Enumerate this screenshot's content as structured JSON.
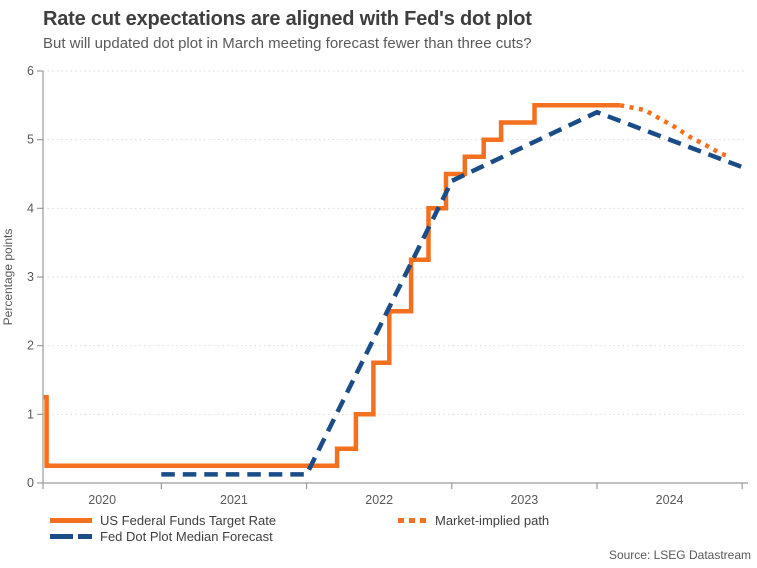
{
  "chart_data": {
    "type": "line",
    "title": "Rate cut expectations are aligned with Fed's dot plot",
    "subtitle": "But will updated dot plot in March meeting forecast fewer than three cuts?",
    "ylabel": "Percentage points",
    "xlabel": "",
    "ylim": [
      0,
      6
    ],
    "yticks": [
      0,
      1,
      2,
      3,
      4,
      5,
      6
    ],
    "xlim": [
      2020.185,
      2025.04
    ],
    "x_boundary_ticks": [
      2020.185,
      2021,
      2022,
      2023,
      2024,
      2025
    ],
    "x_year_labels": [
      "2020",
      "2021",
      "2022",
      "2023",
      "2024"
    ],
    "grid": "horizontal dotted gridlines at each integer, on",
    "legend_position": "bottom-left, two columns",
    "series": [
      {
        "name": "US Federal Funds Target Rate",
        "type": "step",
        "line_style": "solid",
        "color": "#F4701E",
        "points": [
          [
            2020.19,
            1.25
          ],
          [
            2020.21,
            0.25
          ],
          [
            2022.21,
            0.5
          ],
          [
            2022.34,
            1.0
          ],
          [
            2022.46,
            1.75
          ],
          [
            2022.57,
            2.5
          ],
          [
            2022.72,
            3.25
          ],
          [
            2022.84,
            4.0
          ],
          [
            2022.96,
            4.5
          ],
          [
            2023.09,
            4.75
          ],
          [
            2023.22,
            5.0
          ],
          [
            2023.34,
            5.25
          ],
          [
            2023.57,
            5.5
          ],
          [
            2024.16,
            5.5
          ]
        ]
      },
      {
        "name": "Fed Dot Plot Median Forecast",
        "type": "line",
        "line_style": "dashed",
        "color": "#1A4C87",
        "points": [
          [
            2021.0,
            0.125
          ],
          [
            2022.0,
            0.125
          ],
          [
            2023.0,
            4.4
          ],
          [
            2024.0,
            5.4
          ],
          [
            2025.0,
            4.6
          ]
        ]
      },
      {
        "name": "Market-implied path",
        "type": "line",
        "line_style": "dotted",
        "color": "#F4701E",
        "points": [
          [
            2024.16,
            5.5
          ],
          [
            2024.33,
            5.43
          ],
          [
            2024.43,
            5.31
          ],
          [
            2024.54,
            5.18
          ],
          [
            2024.64,
            5.04
          ],
          [
            2024.75,
            4.92
          ],
          [
            2024.85,
            4.8
          ],
          [
            2024.92,
            4.75
          ]
        ]
      }
    ]
  },
  "legend": {
    "items": [
      {
        "label": "US Federal Funds Target Rate",
        "style": "solid",
        "color": "#F4701E"
      },
      {
        "label": "Fed Dot Plot Median Forecast",
        "style": "dashed",
        "color": "#1A4C87"
      },
      {
        "label": "Market-implied path",
        "style": "dotted",
        "color": "#F4701E"
      }
    ]
  },
  "source": "Source: LSEG Datastream",
  "colors": {
    "orange": "#F4701E",
    "blue": "#1A4C87",
    "title_text": "#3E3E3E",
    "subtitle_text": "#5A5A5A",
    "axis_line": "#9B9B9B",
    "tick_label": "#595959",
    "gridline": "#D8D8D8",
    "legend_text": "#3F3F3F"
  }
}
